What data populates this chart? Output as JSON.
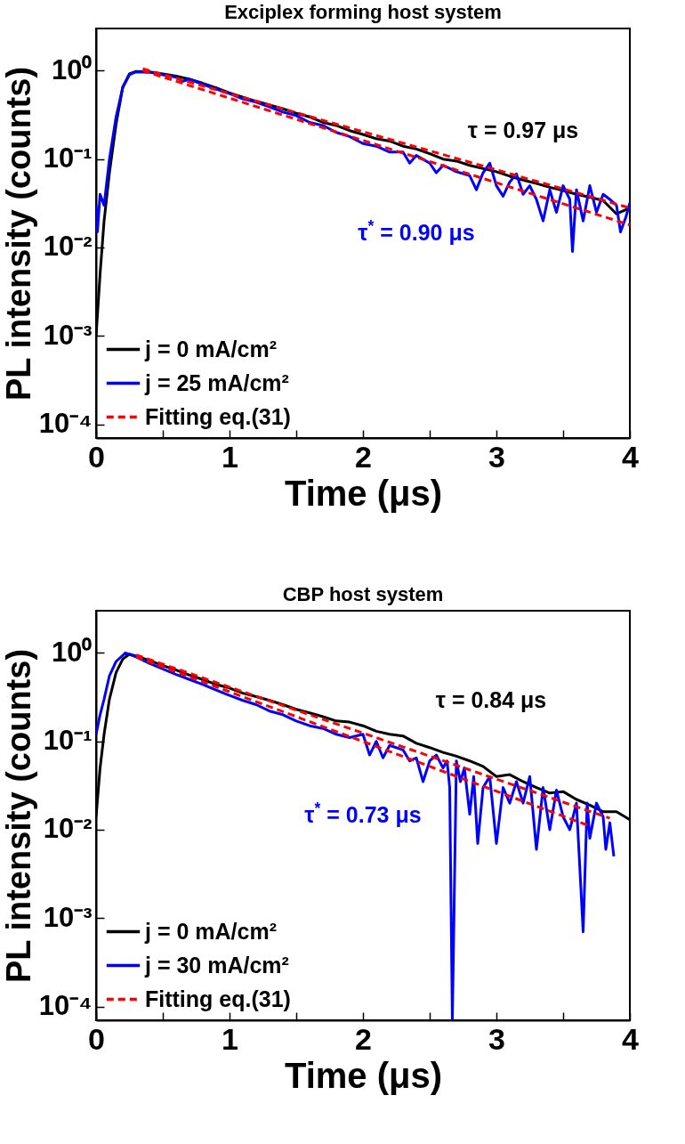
{
  "chart_data": [
    {
      "type": "line",
      "title": "Exciplex forming host system",
      "xlabel": "Time (μs)",
      "ylabel": "PL intensity (counts)",
      "log": "y",
      "grid": false,
      "legend": "bottom left",
      "xlim": [
        0,
        4
      ],
      "xticks": [
        0,
        {
          "value": 0.5,
          "label": null
        },
        1,
        {
          "value": 1.5,
          "label": null
        },
        2,
        {
          "value": 2.5,
          "label": null
        },
        3,
        {
          "value": 3.5,
          "label": null
        },
        4
      ],
      "ylim": [
        7e-05,
        3
      ],
      "yticks": [
        {
          "value": 1,
          "label": "10⁰"
        },
        {
          "value": 0.1,
          "label": "10⁻¹"
        },
        {
          "value": 0.01,
          "label": "10⁻²"
        },
        {
          "value": 0.001,
          "label": "10⁻³"
        },
        {
          "value": 0.0001,
          "label": "10⁻⁴"
        }
      ],
      "series": [
        {
          "name": "j = 0 mA/cm²",
          "color": "#000000",
          "line_style": "solid",
          "x": [
            0,
            0.03,
            0.06,
            0.1,
            0.15,
            0.2,
            0.25,
            0.3,
            0.4,
            0.5,
            0.6,
            0.7,
            0.8,
            0.9,
            1.0,
            1.1,
            1.2,
            1.3,
            1.4,
            1.5,
            1.6,
            1.7,
            1.8,
            1.9,
            2.0,
            2.1,
            2.2,
            2.3,
            2.4,
            2.5,
            2.6,
            2.7,
            2.8,
            2.9,
            3.0,
            3.1,
            3.2,
            3.3,
            3.4,
            3.5,
            3.6,
            3.7,
            3.8,
            3.9,
            4.0
          ],
          "values": [
            0.001,
            0.005,
            0.02,
            0.07,
            0.25,
            0.65,
            0.92,
            0.98,
            0.97,
            0.92,
            0.87,
            0.8,
            0.72,
            0.64,
            0.56,
            0.5,
            0.45,
            0.41,
            0.37,
            0.33,
            0.3,
            0.26,
            0.24,
            0.21,
            0.19,
            0.17,
            0.16,
            0.14,
            0.13,
            0.115,
            0.1,
            0.095,
            0.085,
            0.078,
            0.072,
            0.064,
            0.058,
            0.053,
            0.048,
            0.044,
            0.04,
            0.037,
            0.034,
            0.024,
            0.028
          ]
        },
        {
          "name": "j = 25 mA/cm²",
          "color": "#0000ff",
          "line_style": "solid",
          "x": [
            0,
            0.01,
            0.03,
            0.06,
            0.1,
            0.15,
            0.2,
            0.25,
            0.3,
            0.4,
            0.5,
            0.6,
            0.65,
            0.7,
            0.8,
            0.9,
            1.0,
            1.1,
            1.2,
            1.3,
            1.4,
            1.5,
            1.6,
            1.7,
            1.8,
            1.9,
            2.0,
            2.1,
            2.2,
            2.3,
            2.35,
            2.4,
            2.5,
            2.55,
            2.6,
            2.7,
            2.8,
            2.85,
            2.9,
            2.95,
            3.0,
            3.05,
            3.1,
            3.15,
            3.2,
            3.25,
            3.3,
            3.35,
            3.4,
            3.45,
            3.5,
            3.55,
            3.57,
            3.6,
            3.65,
            3.7,
            3.75,
            3.8,
            3.85,
            3.9,
            3.93,
            3.97,
            4.0
          ],
          "values": [
            0.03,
            0.015,
            0.04,
            0.03,
            0.1,
            0.3,
            0.65,
            0.9,
            0.97,
            0.96,
            0.9,
            0.84,
            0.76,
            0.8,
            0.7,
            0.62,
            0.55,
            0.48,
            0.44,
            0.39,
            0.34,
            0.31,
            0.26,
            0.24,
            0.2,
            0.18,
            0.15,
            0.14,
            0.12,
            0.12,
            0.09,
            0.11,
            0.09,
            0.07,
            0.085,
            0.072,
            0.065,
            0.045,
            0.07,
            0.09,
            0.05,
            0.038,
            0.055,
            0.068,
            0.04,
            0.05,
            0.035,
            0.02,
            0.045,
            0.025,
            0.05,
            0.035,
            0.009,
            0.045,
            0.02,
            0.05,
            0.025,
            0.04,
            0.035,
            0.03,
            0.015,
            0.022,
            0.032
          ]
        },
        {
          "name": "Fitting eq.(31)",
          "color": "#ff0000",
          "line_style": "dashed",
          "x": [
            0.35,
            4
          ],
          "values": [
            1.05,
            0.028
          ]
        },
        {
          "color": "#ff0000",
          "line_style": "dashed",
          "x": [
            0.35,
            4
          ],
          "values": [
            1.0,
            0.018
          ]
        }
      ],
      "annotations": [
        "τ = 0.97 μs",
        "τ$^{*}$ = 0.90 μs"
      ]
    },
    {
      "type": "line",
      "title": "CBP host system",
      "xlabel": "Time (μs)",
      "ylabel": "PL intensity (counts)",
      "log": "y",
      "grid": false,
      "legend": "bottom left",
      "xlim": [
        0,
        4
      ],
      "xticks": [
        0,
        {
          "value": 0.5,
          "label": null
        },
        1,
        {
          "value": 1.5,
          "label": null
        },
        2,
        {
          "value": 2.5,
          "label": null
        },
        3,
        {
          "value": 3.5,
          "label": null
        },
        4
      ],
      "ylim": [
        7e-05,
        3
      ],
      "yticks": [
        {
          "value": 1,
          "label": "10⁰"
        },
        {
          "value": 0.1,
          "label": "10⁻¹"
        },
        {
          "value": 0.01,
          "label": "10⁻²"
        },
        {
          "value": 0.001,
          "label": "10⁻³"
        },
        {
          "value": 0.0001,
          "label": "10⁻⁴"
        }
      ],
      "series": [
        {
          "name": "j = 0 mA/cm²",
          "color": "#000000",
          "line_style": "solid",
          "x": [
            0,
            0.03,
            0.06,
            0.1,
            0.15,
            0.2,
            0.25,
            0.3,
            0.4,
            0.5,
            0.6,
            0.7,
            0.8,
            0.9,
            1.0,
            1.1,
            1.2,
            1.3,
            1.4,
            1.5,
            1.6,
            1.7,
            1.8,
            1.9,
            2.0,
            2.1,
            2.2,
            2.3,
            2.4,
            2.5,
            2.6,
            2.7,
            2.8,
            2.9,
            3.0,
            3.1,
            3.2,
            3.3,
            3.4,
            3.5,
            3.6,
            3.7,
            3.8,
            3.9,
            4.0
          ],
          "values": [
            0.014,
            0.05,
            0.12,
            0.3,
            0.6,
            0.85,
            0.97,
            0.92,
            0.82,
            0.72,
            0.64,
            0.56,
            0.5,
            0.44,
            0.4,
            0.35,
            0.32,
            0.29,
            0.26,
            0.23,
            0.21,
            0.19,
            0.17,
            0.165,
            0.15,
            0.13,
            0.12,
            0.115,
            0.095,
            0.085,
            0.075,
            0.068,
            0.06,
            0.052,
            0.04,
            0.042,
            0.035,
            0.03,
            0.026,
            0.027,
            0.022,
            0.019,
            0.016,
            0.016,
            0.013
          ]
        },
        {
          "name": "j = 30 mA/cm²",
          "color": "#0000ff",
          "line_style": "solid",
          "x": [
            0,
            0.03,
            0.06,
            0.1,
            0.15,
            0.22,
            0.3,
            0.4,
            0.5,
            0.6,
            0.7,
            0.8,
            0.9,
            1.0,
            1.1,
            1.2,
            1.3,
            1.4,
            1.5,
            1.6,
            1.7,
            1.8,
            1.9,
            2.0,
            2.05,
            2.1,
            2.15,
            2.2,
            2.3,
            2.35,
            2.4,
            2.45,
            2.5,
            2.55,
            2.6,
            2.63,
            2.65,
            2.67,
            2.7,
            2.73,
            2.76,
            2.8,
            2.83,
            2.86,
            2.9,
            2.95,
            3.0,
            3.05,
            3.1,
            3.15,
            3.2,
            3.25,
            3.3,
            3.35,
            3.4,
            3.45,
            3.5,
            3.55,
            3.6,
            3.65,
            3.68,
            3.7,
            3.75,
            3.8,
            3.82,
            3.85,
            3.88
          ],
          "values": [
            0.12,
            0.2,
            0.3,
            0.55,
            0.8,
            1.0,
            0.9,
            0.76,
            0.66,
            0.57,
            0.5,
            0.44,
            0.38,
            0.33,
            0.29,
            0.26,
            0.22,
            0.2,
            0.17,
            0.15,
            0.14,
            0.12,
            0.11,
            0.12,
            0.07,
            0.1,
            0.065,
            0.09,
            0.08,
            0.06,
            0.065,
            0.035,
            0.06,
            0.07,
            0.05,
            0.06,
            0.03,
            7e-05,
            0.06,
            0.035,
            0.05,
            0.015,
            0.04,
            0.007,
            0.03,
            0.04,
            0.007,
            0.03,
            0.02,
            0.035,
            0.02,
            0.04,
            0.006,
            0.03,
            0.01,
            0.028,
            0.014,
            0.01,
            0.02,
            0.0007,
            0.02,
            0.008,
            0.02,
            0.014,
            0.006,
            0.012,
            0.005
          ]
        },
        {
          "name": "Fitting eq.(31)",
          "color": "#ff0000",
          "line_style": "dashed",
          "x": [
            0.3,
            3.85
          ],
          "values": [
            0.95,
            0.0135
          ]
        },
        {
          "color": "#ff0000",
          "line_style": "dashed",
          "x": [
            0.3,
            3.7
          ],
          "values": [
            0.9,
            0.011
          ]
        }
      ],
      "annotations": [
        "τ = 0.84 μs",
        "τ$^{*}$ = 0.73 μs"
      ]
    }
  ]
}
